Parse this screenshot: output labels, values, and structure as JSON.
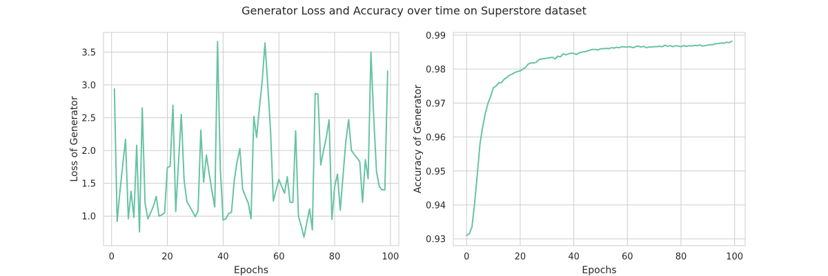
{
  "figure": {
    "title": "Generator Loss and Accuracy over time on Superstore dataset"
  },
  "colors": {
    "series": "#66c2a5",
    "grid": "#cccccc",
    "text": "#262626"
  },
  "chart_data": [
    {
      "type": "line",
      "title": "",
      "xlabel": "Epochs",
      "ylabel": "Loss of Generator",
      "xlim": [
        -2.9,
        103
      ],
      "ylim": [
        0.55,
        3.8
      ],
      "xticks": [
        0,
        20,
        40,
        60,
        80,
        100
      ],
      "yticks": [
        1.0,
        1.5,
        2.0,
        2.5,
        3.0,
        3.5
      ],
      "xtick_labels": [
        "0",
        "20",
        "40",
        "60",
        "80",
        "100"
      ],
      "ytick_labels": [
        "1.0",
        "1.5",
        "2.0",
        "2.5",
        "3.0",
        "3.5"
      ],
      "grid": true,
      "series": [
        {
          "x": [
            1,
            2,
            3,
            4,
            5,
            6,
            7,
            8,
            9,
            10,
            11,
            12,
            13,
            14,
            15,
            16,
            17,
            18,
            19,
            20,
            21,
            22,
            23,
            24,
            25,
            26,
            27,
            28,
            29,
            30,
            31,
            32,
            33,
            34,
            35,
            36,
            37,
            38,
            39,
            40,
            41,
            42,
            43,
            44,
            45,
            46,
            47,
            48,
            49,
            50,
            51,
            52,
            53,
            54,
            55,
            56,
            57,
            58,
            59,
            60,
            61,
            62,
            63,
            64,
            65,
            66,
            67,
            68,
            69,
            70,
            71,
            72,
            73,
            74,
            75,
            76,
            77,
            78,
            79,
            80,
            81,
            82,
            83,
            84,
            85,
            86,
            87,
            88,
            89,
            90,
            91,
            92,
            93,
            94,
            95,
            96,
            97,
            98,
            99
          ],
          "values": [
            2.94,
            0.92,
            1.38,
            1.78,
            2.17,
            0.96,
            1.38,
            0.98,
            2.08,
            0.76,
            2.65,
            1.2,
            0.96,
            1.05,
            1.15,
            1.3,
            1.0,
            1.02,
            1.05,
            1.74,
            1.76,
            2.69,
            1.07,
            1.82,
            2.55,
            1.55,
            1.22,
            1.15,
            1.07,
            0.99,
            1.08,
            2.31,
            1.52,
            1.93,
            1.65,
            1.38,
            1.14,
            3.66,
            1.71,
            0.94,
            0.96,
            1.04,
            1.06,
            1.55,
            1.83,
            2.03,
            1.41,
            1.3,
            1.2,
            0.96,
            2.52,
            2.2,
            2.65,
            3.05,
            3.64,
            3.0,
            2.3,
            1.23,
            1.4,
            1.56,
            1.45,
            1.35,
            1.6,
            1.21,
            1.21,
            2.3,
            1.0,
            0.85,
            0.68,
            0.9,
            1.11,
            0.79,
            2.87,
            2.86,
            1.78,
            2.0,
            2.2,
            2.47,
            0.95,
            1.45,
            1.64,
            1.09,
            1.62,
            2.14,
            2.47,
            2.0,
            1.94,
            1.89,
            1.83,
            1.21,
            1.86,
            1.57,
            3.5,
            2.5,
            1.68,
            1.45,
            1.4,
            1.4,
            3.21
          ]
        }
      ]
    },
    {
      "type": "line",
      "title": "",
      "xlabel": "Epochs",
      "ylabel": "Accuracy of Generator",
      "xlim": [
        -4.95,
        103.95
      ],
      "ylim": [
        0.928,
        0.9908
      ],
      "xticks": [
        0,
        20,
        40,
        60,
        80,
        100
      ],
      "yticks": [
        0.93,
        0.94,
        0.95,
        0.96,
        0.97,
        0.98,
        0.99
      ],
      "xtick_labels": [
        "0",
        "20",
        "40",
        "60",
        "80",
        "100"
      ],
      "ytick_labels": [
        "0.93",
        "0.94",
        "0.95",
        "0.96",
        "0.97",
        "0.98",
        "0.99"
      ],
      "grid": true,
      "series": [
        {
          "x": [
            0,
            1,
            2,
            3,
            4,
            5,
            6,
            7,
            8,
            9,
            10,
            11,
            12,
            13,
            14,
            15,
            16,
            17,
            18,
            19,
            20,
            21,
            22,
            23,
            24,
            25,
            26,
            27,
            28,
            29,
            30,
            31,
            32,
            33,
            34,
            35,
            36,
            37,
            38,
            39,
            40,
            41,
            42,
            43,
            44,
            45,
            46,
            47,
            48,
            49,
            50,
            51,
            52,
            53,
            54,
            55,
            56,
            57,
            58,
            59,
            60,
            61,
            62,
            63,
            64,
            65,
            66,
            67,
            68,
            69,
            70,
            71,
            72,
            73,
            74,
            75,
            76,
            77,
            78,
            79,
            80,
            81,
            82,
            83,
            84,
            85,
            86,
            87,
            88,
            89,
            90,
            91,
            92,
            93,
            94,
            95,
            96,
            97,
            98,
            99
          ],
          "values": [
            0.931,
            0.9315,
            0.9335,
            0.9405,
            0.949,
            0.958,
            0.963,
            0.967,
            0.97,
            0.972,
            0.9745,
            0.975,
            0.976,
            0.976,
            0.977,
            0.9775,
            0.9782,
            0.9785,
            0.979,
            0.9793,
            0.9795,
            0.98,
            0.9805,
            0.9815,
            0.9818,
            0.9818,
            0.982,
            0.9828,
            0.983,
            0.9831,
            0.9832,
            0.9833,
            0.9835,
            0.983,
            0.9838,
            0.9836,
            0.9845,
            0.9842,
            0.9845,
            0.9847,
            0.9846,
            0.9843,
            0.9848,
            0.985,
            0.9851,
            0.9853,
            0.9856,
            0.9858,
            0.9858,
            0.9856,
            0.986,
            0.986,
            0.9861,
            0.986,
            0.9863,
            0.9862,
            0.9864,
            0.9863,
            0.9866,
            0.9865,
            0.9865,
            0.9866,
            0.9863,
            0.9866,
            0.9868,
            0.9865,
            0.9867,
            0.9863,
            0.9865,
            0.9865,
            0.9866,
            0.9866,
            0.9867,
            0.9866,
            0.987,
            0.9867,
            0.9869,
            0.9866,
            0.9869,
            0.9868,
            0.9866,
            0.9869,
            0.9867,
            0.9869,
            0.9868,
            0.987,
            0.9869,
            0.9871,
            0.9868,
            0.9869,
            0.9871,
            0.9872,
            0.9872,
            0.9875,
            0.9875,
            0.9877,
            0.9876,
            0.9879,
            0.9878,
            0.9882
          ]
        }
      ]
    }
  ]
}
